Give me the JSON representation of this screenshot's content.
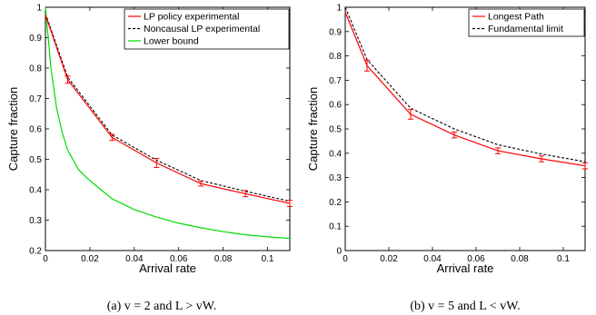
{
  "chart_data": [
    {
      "type": "line",
      "caption": "(a) v = 2 and L > vW.",
      "xlabel": "Arrival rate",
      "ylabel": "Capture fraction",
      "xlim": [
        0,
        0.11
      ],
      "ylim": [
        0.2,
        1
      ],
      "xticks": [
        "0",
        "0.02",
        "0.04",
        "0.06",
        "0.08",
        "0.1"
      ],
      "yticks": [
        "0.2",
        "0.3",
        "0.4",
        "0.5",
        "0.6",
        "0.7",
        "0.8",
        "0.9",
        "1"
      ],
      "grid": false,
      "legend_position": "top-right",
      "series": [
        {
          "name": "LP policy experimental",
          "color": "#ff0000",
          "style": "solid",
          "x": [
            0,
            0.01,
            0.03,
            0.05,
            0.07,
            0.09,
            0.11
          ],
          "y": [
            0.975,
            0.762,
            0.572,
            0.488,
            0.42,
            0.387,
            0.355
          ],
          "error": [
            0,
            0.012,
            0.01,
            0.015,
            0.008,
            0.01,
            0.01
          ]
        },
        {
          "name": "Noncausal LP experimental",
          "color": "#000000",
          "style": "dashed",
          "x": [
            0,
            0.01,
            0.03,
            0.05,
            0.07,
            0.09,
            0.11
          ],
          "y": [
            0.98,
            0.77,
            0.58,
            0.497,
            0.43,
            0.395,
            0.362
          ]
        },
        {
          "name": "Lower bound",
          "color": "#00dd00",
          "style": "solid",
          "x": [
            0,
            0.0025,
            0.005,
            0.0075,
            0.01,
            0.015,
            0.02,
            0.03,
            0.04,
            0.05,
            0.06,
            0.07,
            0.08,
            0.09,
            0.1,
            0.11
          ],
          "y": [
            1.0,
            0.8,
            0.67,
            0.59,
            0.53,
            0.465,
            0.43,
            0.37,
            0.335,
            0.31,
            0.29,
            0.275,
            0.262,
            0.252,
            0.245,
            0.24
          ]
        }
      ]
    },
    {
      "type": "line",
      "caption": "(b) v = 5 and L < vW.",
      "xlabel": "Arrival rate",
      "ylabel": "Capture fraction",
      "xlim": [
        0,
        0.11
      ],
      "ylim": [
        0,
        1
      ],
      "xticks": [
        "0",
        "0.02",
        "0.04",
        "0.06",
        "0.08",
        "0.1"
      ],
      "yticks": [
        "0",
        "0.1",
        "0.2",
        "0.3",
        "0.4",
        "0.5",
        "0.6",
        "0.7",
        "0.8",
        "0.9",
        "1"
      ],
      "grid": false,
      "legend_position": "top-right",
      "series": [
        {
          "name": "Longest Path",
          "color": "#ff0000",
          "style": "solid",
          "x": [
            0,
            0.01,
            0.03,
            0.05,
            0.07,
            0.09,
            0.11
          ],
          "y": [
            0.98,
            0.76,
            0.56,
            0.475,
            0.41,
            0.377,
            0.348
          ],
          "error": [
            0,
            0.022,
            0.02,
            0.012,
            0.012,
            0.012,
            0.012
          ]
        },
        {
          "name": "Fundamental limit",
          "color": "#000000",
          "style": "dashed",
          "x": [
            0,
            0.01,
            0.03,
            0.05,
            0.07,
            0.09,
            0.11
          ],
          "y": [
            1.0,
            0.785,
            0.585,
            0.5,
            0.435,
            0.397,
            0.365
          ]
        }
      ]
    }
  ]
}
